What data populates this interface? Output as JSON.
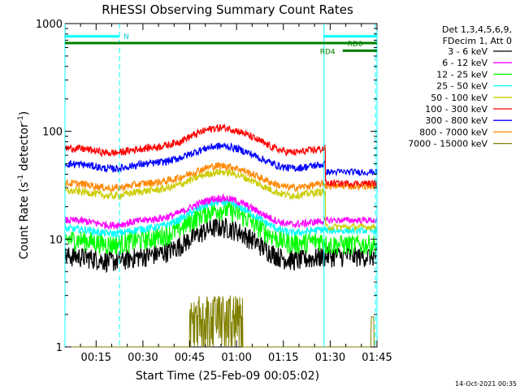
{
  "chart_data": {
    "type": "line",
    "title": "RHESSI Observing Summary Count Rates",
    "xlabel": "Start Time (25-Feb-09 00:05:02)",
    "ylabel_main": "Count Rate (s",
    "ylabel_sup1": "-1",
    "ylabel_mid": " detector",
    "ylabel_sup2": "-1",
    "ylabel_end": ")",
    "y_scale": "log",
    "ylim": [
      1,
      1000
    ],
    "xlim_minutes": [
      5.03,
      105
    ],
    "x_ticks": [
      {
        "minute": 15,
        "label": "00:15"
      },
      {
        "minute": 30,
        "label": "00:30"
      },
      {
        "minute": 45,
        "label": "00:45"
      },
      {
        "minute": 60,
        "label": "01:00"
      },
      {
        "minute": 75,
        "label": "01:15"
      },
      {
        "minute": 90,
        "label": "01:30"
      },
      {
        "minute": 105,
        "label": "01:45"
      }
    ],
    "y_ticks": [
      {
        "value": 1,
        "label": "1"
      },
      {
        "value": 10,
        "label": "10"
      },
      {
        "value": 100,
        "label": "100"
      },
      {
        "value": 1000,
        "label": "1000"
      }
    ],
    "legend_header": [
      "Det 1,3,4,5,6,9,",
      "FDecim 1, Att 0"
    ],
    "legend_placement": "right",
    "series": [
      {
        "name": "3 - 6 keV",
        "color": "#000000",
        "pre": 7.0,
        "peak": 13,
        "post": 7.0
      },
      {
        "name": "6 - 12 keV",
        "color": "#ff00ff",
        "pre": 15,
        "peak": 24,
        "post": 15
      },
      {
        "name": "12 - 25 keV",
        "color": "#00ff00",
        "pre": 10,
        "peak": 19,
        "post": 9
      },
      {
        "name": "25 - 50 keV",
        "color": "#00ffff",
        "pre": 12.5,
        "peak": 22,
        "post": 12
      },
      {
        "name": "50 - 100 keV",
        "color": "#cccc00",
        "pre": 28,
        "peak": 42,
        "post": 13
      },
      {
        "name": "100 - 300 keV",
        "color": "#ff0000",
        "pre": 70,
        "peak": 108,
        "post": 33
      },
      {
        "name": "300 - 800 keV",
        "color": "#0000ff",
        "pre": 50,
        "peak": 73,
        "post": 42
      },
      {
        "name": "800 - 7000 keV",
        "color": "#ff8800",
        "pre": 33,
        "peak": 48,
        "post": 31
      },
      {
        "name": "7000 - 15000 keV",
        "color": "#808000",
        "pre": 1.0,
        "peak": 3.0,
        "post": 1.0
      }
    ],
    "peak_minute": 55,
    "data_gap_minute": 88.5,
    "markers": {
      "vertical_solid": [
        5.03,
        88,
        105
      ],
      "vertical_dashed": [
        22.5,
        105
      ],
      "n_label": "N",
      "rd0_label": "RD0",
      "rd4_label": "RD4"
    },
    "bands": [
      {
        "label_key": "n_label",
        "color": "#00ffff",
        "segments": [
          [
            5.03,
            22.5
          ],
          [
            88,
            105
          ]
        ],
        "y_value": 760
      },
      {
        "label_key": "rd0_label",
        "color": "#008000",
        "segments": [
          [
            5.03,
            88
          ],
          [
            88,
            105
          ]
        ],
        "y_value": 660
      },
      {
        "label_key": "rd4_label",
        "color": "#008000",
        "segments": [
          [
            94,
            105
          ]
        ],
        "y_value": 560
      }
    ]
  },
  "timestamp": "14-Oct-2021 00:35"
}
